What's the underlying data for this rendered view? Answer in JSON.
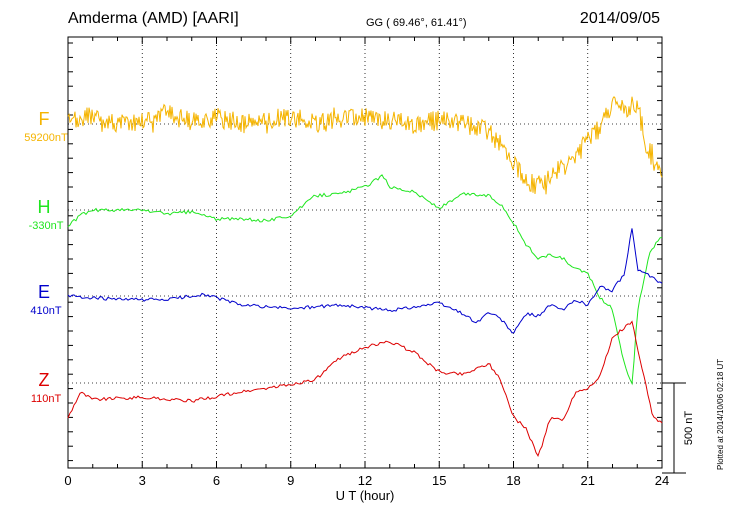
{
  "header": {
    "title": "Amderma (AMD)  [AARI]",
    "coords": "GG ( 69.46°,  61.41°)",
    "date": "2014/09/05"
  },
  "footer": {
    "plotted": "Plotted at 2014/10/06 02:18 UT"
  },
  "scale_bar": {
    "label": "500 nT",
    "value_nT": 500
  },
  "colors": {
    "F": "#f5b400",
    "H": "#1fe61f",
    "E": "#0000cc",
    "Z": "#dd0000",
    "grid": "#000000"
  },
  "chart_data": {
    "type": "line",
    "title": "Amderma (AMD)  [AARI]",
    "xlabel": "U T (hour)",
    "xlim": [
      0,
      24
    ],
    "xticks": [
      0,
      3,
      6,
      9,
      12,
      15,
      18,
      21,
      24
    ],
    "x_tick_labels": [
      "0",
      "3",
      "6",
      "9",
      "12",
      "15",
      "18",
      "21",
      "24"
    ],
    "grid": true,
    "series": [
      {
        "name": "F",
        "baseline_label": "59200nT",
        "color": "#f5b400",
        "noisy": true,
        "x": [
          0,
          1,
          2,
          3,
          4,
          5,
          6,
          7,
          8,
          9,
          10,
          11,
          12,
          13,
          14,
          15,
          16,
          17,
          17.5,
          18,
          18.5,
          19,
          19.5,
          20,
          20.5,
          21,
          21.5,
          22,
          22.5,
          23,
          23.3,
          24
        ],
        "values": [
          59200,
          59250,
          59200,
          59220,
          59260,
          59210,
          59240,
          59200,
          59220,
          59240,
          59200,
          59220,
          59240,
          59220,
          59200,
          59220,
          59200,
          59160,
          59080,
          59000,
          58880,
          58860,
          58920,
          58960,
          59000,
          59120,
          59180,
          59300,
          59280,
          59320,
          59100,
          58900
        ]
      },
      {
        "name": "H",
        "baseline_label": "-330nT",
        "color": "#1fe61f",
        "noisy": false,
        "x": [
          0,
          0.5,
          1,
          2,
          3,
          4,
          5,
          6,
          7,
          8,
          9,
          10,
          11,
          12,
          12.7,
          13,
          14,
          15,
          16,
          17,
          17.5,
          18,
          18.5,
          19,
          19.5,
          20,
          20.5,
          21,
          21.5,
          22,
          22.5,
          22.8,
          23,
          23.5,
          24
        ],
        "values": [
          -420,
          -360,
          -330,
          -330,
          -330,
          -350,
          -340,
          -380,
          -380,
          -390,
          -360,
          -250,
          -240,
          -200,
          -140,
          -200,
          -230,
          -320,
          -240,
          -250,
          -300,
          -400,
          -520,
          -600,
          -580,
          -600,
          -660,
          -680,
          -820,
          -880,
          -1200,
          -1300,
          -900,
          -560,
          -480
        ]
      },
      {
        "name": "E",
        "baseline_label": "410nT",
        "color": "#0000cc",
        "noisy": false,
        "x": [
          0,
          2,
          4,
          5.5,
          7,
          9,
          11,
          13,
          15,
          16,
          16.5,
          17,
          17.5,
          18,
          18.5,
          19,
          19.5,
          20,
          20.5,
          21,
          21.5,
          22,
          22.5,
          22.8,
          23,
          24
        ],
        "values": [
          410,
          390,
          390,
          420,
          360,
          340,
          360,
          330,
          370,
          310,
          260,
          320,
          280,
          200,
          310,
          300,
          360,
          330,
          390,
          360,
          460,
          440,
          540,
          800,
          560,
          480
        ]
      },
      {
        "name": "Z",
        "baseline_label": "110nT",
        "color": "#dd0000",
        "noisy": false,
        "x": [
          0,
          0.5,
          1,
          3,
          5,
          7,
          9,
          10,
          11,
          12,
          13,
          14,
          15,
          16,
          17,
          17.5,
          18,
          18.5,
          19,
          19.5,
          20,
          20.5,
          21,
          21.5,
          22,
          22.5,
          22.8,
          23,
          23.3,
          23.6,
          24
        ],
        "values": [
          -80,
          60,
          20,
          30,
          10,
          60,
          100,
          130,
          250,
          310,
          340,
          280,
          170,
          160,
          220,
          120,
          -80,
          -140,
          -300,
          -80,
          -100,
          60,
          80,
          150,
          360,
          420,
          450,
          300,
          130,
          -60,
          -120
        ]
      }
    ]
  }
}
